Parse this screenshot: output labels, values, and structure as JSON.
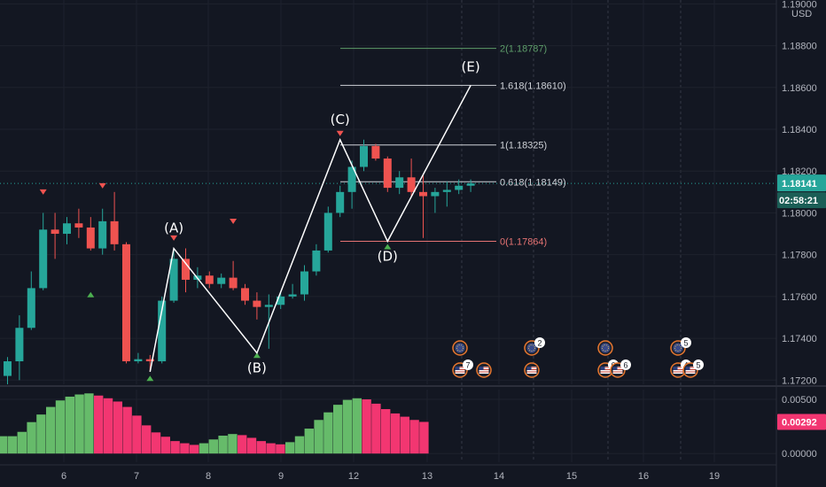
{
  "chart_data": [
    {
      "type": "candlestick",
      "currency": "USD",
      "x_ticks": [
        "6",
        "7",
        "8",
        "9",
        "12",
        "13",
        "14",
        "15",
        "16",
        "19"
      ],
      "y_ticks": [
        "1.19000",
        "1.18800",
        "1.18600",
        "1.18400",
        "1.18200",
        "1.18000",
        "1.17800",
        "1.17600",
        "1.17400",
        "1.17200"
      ],
      "ylim": [
        1.1718,
        1.1901
      ],
      "current_price": "1.18141",
      "countdown": "02:58:21",
      "candles": [
        {
          "o": 1.1722,
          "h": 1.1731,
          "l": 1.1718,
          "c": 1.1729
        },
        {
          "o": 1.1729,
          "h": 1.1751,
          "l": 1.172,
          "c": 1.1745
        },
        {
          "o": 1.1745,
          "h": 1.1772,
          "l": 1.1744,
          "c": 1.1764
        },
        {
          "o": 1.1764,
          "h": 1.18,
          "l": 1.1763,
          "c": 1.1792
        },
        {
          "o": 1.1792,
          "h": 1.18,
          "l": 1.1778,
          "c": 1.179
        },
        {
          "o": 1.179,
          "h": 1.1798,
          "l": 1.1785,
          "c": 1.1795
        },
        {
          "o": 1.1795,
          "h": 1.1802,
          "l": 1.1788,
          "c": 1.1793
        },
        {
          "o": 1.1793,
          "h": 1.1798,
          "l": 1.1782,
          "c": 1.1783
        },
        {
          "o": 1.1783,
          "h": 1.1802,
          "l": 1.178,
          "c": 1.1796
        },
        {
          "o": 1.1796,
          "h": 1.181,
          "l": 1.1782,
          "c": 1.1785
        },
        {
          "o": 1.1785,
          "h": 1.1786,
          "l": 1.1728,
          "c": 1.1729
        },
        {
          "o": 1.1729,
          "h": 1.1733,
          "l": 1.1728,
          "c": 1.173
        },
        {
          "o": 1.173,
          "h": 1.1732,
          "l": 1.1724,
          "c": 1.1729
        },
        {
          "o": 1.1729,
          "h": 1.176,
          "l": 1.1728,
          "c": 1.1758
        },
        {
          "o": 1.1758,
          "h": 1.1782,
          "l": 1.1757,
          "c": 1.1778
        },
        {
          "o": 1.1778,
          "h": 1.1783,
          "l": 1.1762,
          "c": 1.1768
        },
        {
          "o": 1.1768,
          "h": 1.1774,
          "l": 1.1764,
          "c": 1.177
        },
        {
          "o": 1.177,
          "h": 1.1772,
          "l": 1.1764,
          "c": 1.1766
        },
        {
          "o": 1.1766,
          "h": 1.1771,
          "l": 1.1764,
          "c": 1.1769
        },
        {
          "o": 1.1769,
          "h": 1.1777,
          "l": 1.1763,
          "c": 1.1764
        },
        {
          "o": 1.1764,
          "h": 1.1766,
          "l": 1.1756,
          "c": 1.1758
        },
        {
          "o": 1.1758,
          "h": 1.1762,
          "l": 1.1749,
          "c": 1.1755
        },
        {
          "o": 1.1755,
          "h": 1.1761,
          "l": 1.1735,
          "c": 1.1756
        },
        {
          "o": 1.1756,
          "h": 1.1762,
          "l": 1.1754,
          "c": 1.176
        },
        {
          "o": 1.176,
          "h": 1.1766,
          "l": 1.1759,
          "c": 1.1761
        },
        {
          "o": 1.1761,
          "h": 1.1775,
          "l": 1.1758,
          "c": 1.1772
        },
        {
          "o": 1.1772,
          "h": 1.1785,
          "l": 1.177,
          "c": 1.1782
        },
        {
          "o": 1.1782,
          "h": 1.1803,
          "l": 1.1781,
          "c": 1.18
        },
        {
          "o": 1.18,
          "h": 1.1813,
          "l": 1.1798,
          "c": 1.181
        },
        {
          "o": 1.181,
          "h": 1.1825,
          "l": 1.1802,
          "c": 1.1822
        },
        {
          "o": 1.1822,
          "h": 1.1835,
          "l": 1.182,
          "c": 1.1832
        },
        {
          "o": 1.1832,
          "h": 1.1833,
          "l": 1.1825,
          "c": 1.1826
        },
        {
          "o": 1.1826,
          "h": 1.1827,
          "l": 1.181,
          "c": 1.1812
        },
        {
          "o": 1.1812,
          "h": 1.182,
          "l": 1.1809,
          "c": 1.1817
        },
        {
          "o": 1.1817,
          "h": 1.1826,
          "l": 1.1808,
          "c": 1.181
        },
        {
          "o": 1.181,
          "h": 1.1818,
          "l": 1.1788,
          "c": 1.1808
        },
        {
          "o": 1.1808,
          "h": 1.1812,
          "l": 1.18,
          "c": 1.181
        },
        {
          "o": 1.181,
          "h": 1.1815,
          "l": 1.1803,
          "c": 1.1811
        },
        {
          "o": 1.1811,
          "h": 1.1816,
          "l": 1.1809,
          "c": 1.1813
        },
        {
          "o": 1.1813,
          "h": 1.1816,
          "l": 1.181,
          "c": 1.18141
        }
      ],
      "down_markers": [
        1.1807,
        1.181,
        1.1785,
        1.1793,
        1.1835
      ],
      "up_markers": [
        1.1763,
        1.1723,
        1.1734,
        1.1786
      ],
      "pattern": {
        "points": [
          {
            "label": "",
            "price": 1.1724
          },
          {
            "label": "(A)",
            "price": 1.1783
          },
          {
            "label": "(B)",
            "price": 1.1733
          },
          {
            "label": "(C)",
            "price": 1.1835
          },
          {
            "label": "(D)",
            "price": 1.17864
          },
          {
            "label": "(E)",
            "price": 1.1861
          }
        ],
        "color": "#ffffff"
      },
      "fib_levels": [
        {
          "label": "2(1.18787)",
          "price": 1.18787,
          "color": "#5e9e6a"
        },
        {
          "label": "1.618(1.18610)",
          "price": 1.1861,
          "color": "#cfd2d8"
        },
        {
          "label": "1(1.18325)",
          "price": 1.18325,
          "color": "#cfd2d8"
        },
        {
          "label": "0.618(1.18149)",
          "price": 1.18149,
          "color": "#cfd2d8"
        },
        {
          "label": "0(1.17864)",
          "price": 1.17864,
          "color": "#e57373"
        }
      ],
      "events": [
        {
          "icon": "eu-flag-icon",
          "badge": ""
        },
        {
          "icon": "us-flag-icon",
          "badge": "7"
        },
        {
          "icon": "us-flag-icon",
          "badge": ""
        },
        {
          "icon": "eu-flag-icon",
          "badge": "2"
        },
        {
          "icon": "us-flag-icon",
          "badge": ""
        },
        {
          "icon": "eu-flag-icon",
          "badge": ""
        },
        {
          "icon": "us-flag-icon",
          "badge": "6"
        },
        {
          "icon": "us-flag-icon",
          "badge": "6"
        },
        {
          "icon": "eu-flag-icon",
          "badge": "5"
        },
        {
          "icon": "us-flag-icon",
          "badge": "4"
        },
        {
          "icon": "us-flag-icon",
          "badge": "5"
        }
      ]
    },
    {
      "type": "histogram",
      "y_ticks": [
        "0.00500",
        "0.00000"
      ],
      "ylim": [
        -0.0008,
        0.0059
      ],
      "current_value": "0.00292",
      "values": [
        0.0016,
        0.0016,
        0.002,
        0.0029,
        0.0036,
        0.0043,
        0.0049,
        0.00525,
        0.00545,
        0.00555,
        0.00535,
        0.0051,
        0.0048,
        0.0043,
        0.0035,
        0.0026,
        0.00195,
        0.00155,
        0.00115,
        0.00095,
        0.0008,
        0.00095,
        0.0013,
        0.00165,
        0.0018,
        0.0017,
        0.00145,
        0.00115,
        0.00095,
        0.00085,
        0.00105,
        0.0016,
        0.0023,
        0.0031,
        0.0038,
        0.0045,
        0.00495,
        0.0051,
        0.005,
        0.0046,
        0.0041,
        0.0037,
        0.0034,
        0.0031,
        0.00292
      ],
      "colors": {
        "rising": "#66bb6a",
        "falling": "#f23671"
      }
    }
  ],
  "colors": {
    "up": "#26a69a",
    "down": "#ef5350",
    "price_tag": "#26a69a",
    "osc_tag": "#f23671"
  }
}
